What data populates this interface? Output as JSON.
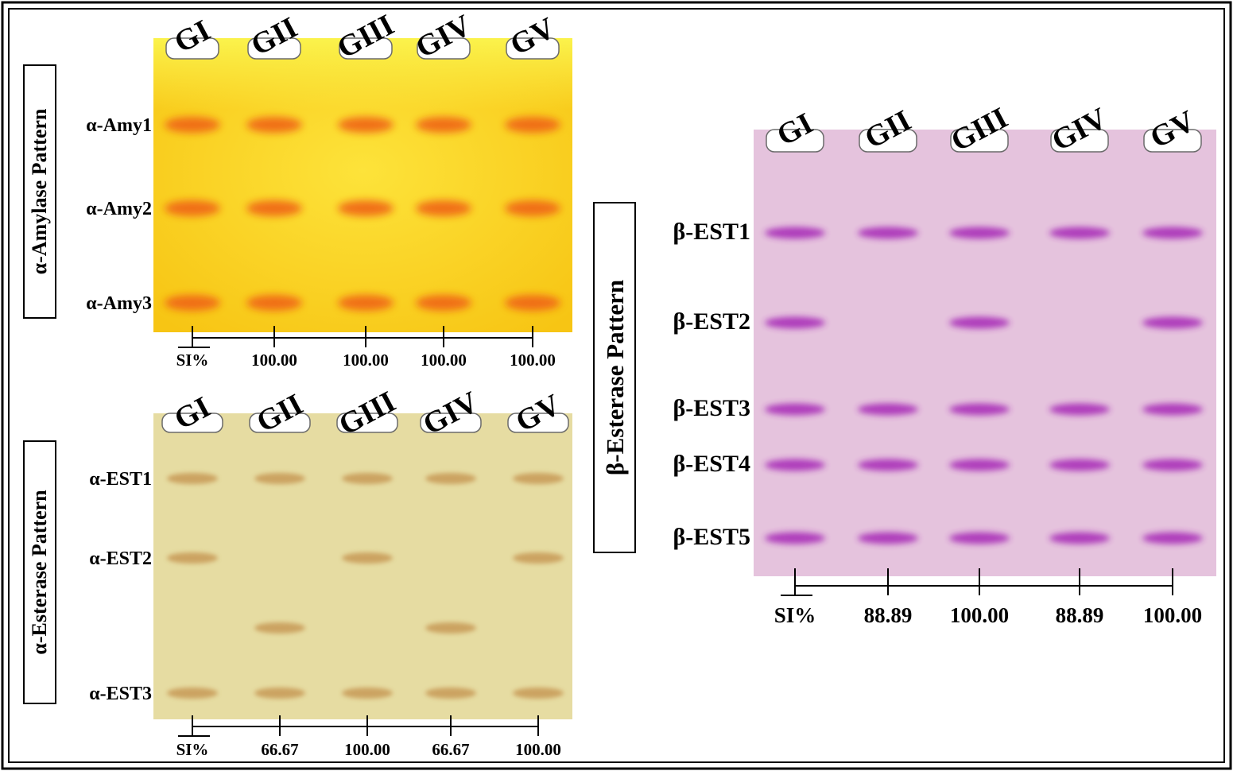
{
  "lanes": [
    "GI",
    "GII",
    "GIII",
    "GIV",
    "GV"
  ],
  "si_label": "SI%",
  "panels": [
    {
      "id": "alpha_amylase",
      "title": "α-Amylase Pattern",
      "band_labels": [
        "α-Amy1",
        "α-Amy2",
        "α-Amy3"
      ],
      "presence": [
        [
          1,
          1,
          1
        ],
        [
          1,
          1,
          1
        ],
        [
          1,
          1,
          1
        ],
        [
          1,
          1,
          1
        ],
        [
          1,
          1,
          1
        ]
      ],
      "si_values": [
        "100.00",
        "100.00",
        "100.00",
        "100.00"
      ],
      "colors": {
        "gel": "#fbd21a",
        "band": "#f06a14"
      }
    },
    {
      "id": "alpha_esterase",
      "title": "α-Esterase Pattern",
      "band_labels": [
        "α-EST1",
        "α-EST2",
        "",
        "α-EST3"
      ],
      "presence": [
        [
          1,
          1,
          0,
          1
        ],
        [
          1,
          0,
          1,
          1
        ],
        [
          1,
          1,
          0,
          1
        ],
        [
          1,
          0,
          1,
          1
        ],
        [
          1,
          1,
          0,
          1
        ]
      ],
      "si_values": [
        "66.67",
        "100.00",
        "66.67",
        "100.00"
      ],
      "colors": {
        "gel": "#e6dca2",
        "band": "#c79a56"
      }
    },
    {
      "id": "beta_esterase",
      "title": "β-Esterase Pattern",
      "band_labels": [
        "β-EST1",
        "β-EST2",
        "β-EST3",
        "β-EST4",
        "β-EST5"
      ],
      "presence": [
        [
          1,
          1,
          1,
          1,
          1
        ],
        [
          1,
          0,
          1,
          1,
          1
        ],
        [
          1,
          1,
          1,
          1,
          1
        ],
        [
          1,
          0,
          1,
          1,
          1
        ],
        [
          1,
          1,
          1,
          1,
          1
        ]
      ],
      "si_values": [
        "88.89",
        "100.00",
        "88.89",
        "100.00"
      ],
      "colors": {
        "gel": "#e5c3dd",
        "band": "#a92fb8"
      }
    }
  ]
}
